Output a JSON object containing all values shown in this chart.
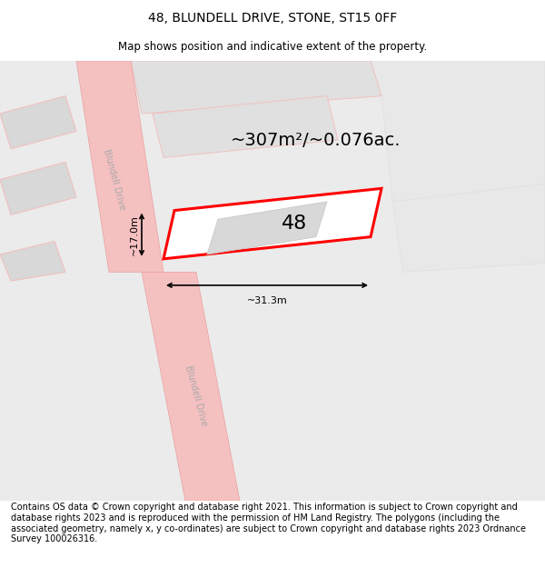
{
  "title": "48, BLUNDELL DRIVE, STONE, ST15 0FF",
  "subtitle": "Map shows position and indicative extent of the property.",
  "footer": "Contains OS data © Crown copyright and database right 2021. This information is subject to Crown copyright and database rights 2023 and is reproduced with the permission of HM Land Registry. The polygons (including the associated geometry, namely x, y co-ordinates) are subject to Crown copyright and database rights 2023 Ordnance Survey 100026316.",
  "title_fontsize": 10,
  "subtitle_fontsize": 8.5,
  "footer_fontsize": 7.0,
  "map_bg": "#e8e8e8",
  "road_color": "#f5c0c0",
  "road_edge": "#e8a0a0",
  "plot_outline_color": "#ff0000",
  "plot_fill": "#ffffff",
  "building_fill": "#d8d8d8",
  "building_edge": "#c8c8c8",
  "land_fill": "#e0e0e0",
  "land_edge": "#f0c0c0",
  "plot_label": "48",
  "area_label": "~307m²/~0.076ac.",
  "dim_width": "~31.3m",
  "dim_height": "~17.0m",
  "label_fontsize": 13,
  "area_fontsize": 14,
  "road_text_color": "#aaaaaa",
  "road_text_fontsize": 7
}
